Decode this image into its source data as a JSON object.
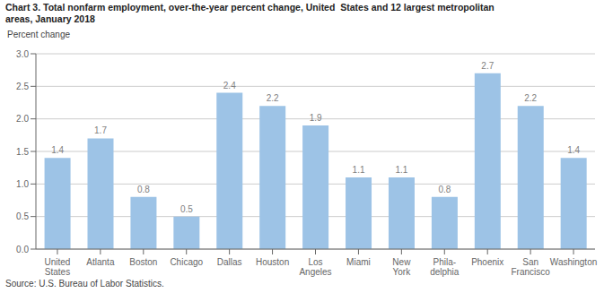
{
  "chart_data": {
    "type": "bar",
    "title": "Chart 3. Total nonfarm employment, over-the-year percent change, United  States and 12 largest metropolitan\nareas, January 2018",
    "y_label": "Percent change",
    "annotations": [
      "Source: U.S. Bureau of Labor Statistics."
    ],
    "categories": [
      "United\nStates",
      "Atlanta",
      "Boston",
      "Chicago",
      "Dallas",
      "Houston",
      "Los\nAngeles",
      "Miami",
      "New\nYork",
      "Phila-\ndelphia",
      "Phoenix",
      "San\nFrancisco",
      "Washington"
    ],
    "values": [
      1.4,
      1.7,
      0.8,
      0.5,
      2.4,
      2.2,
      1.9,
      1.1,
      1.1,
      0.8,
      2.7,
      2.2,
      1.4
    ],
    "color": "#9dc3e6",
    "ylim": [
      0,
      3
    ],
    "yticks": [
      {
        "value": 0,
        "label": "0.0"
      },
      0.5,
      {
        "value": 1,
        "label": "1.0"
      },
      1.5,
      {
        "value": 2,
        "label": "2.0"
      },
      2.5,
      {
        "value": 3,
        "label": "3.0"
      }
    ],
    "grid": true,
    "data_labels": true
  }
}
